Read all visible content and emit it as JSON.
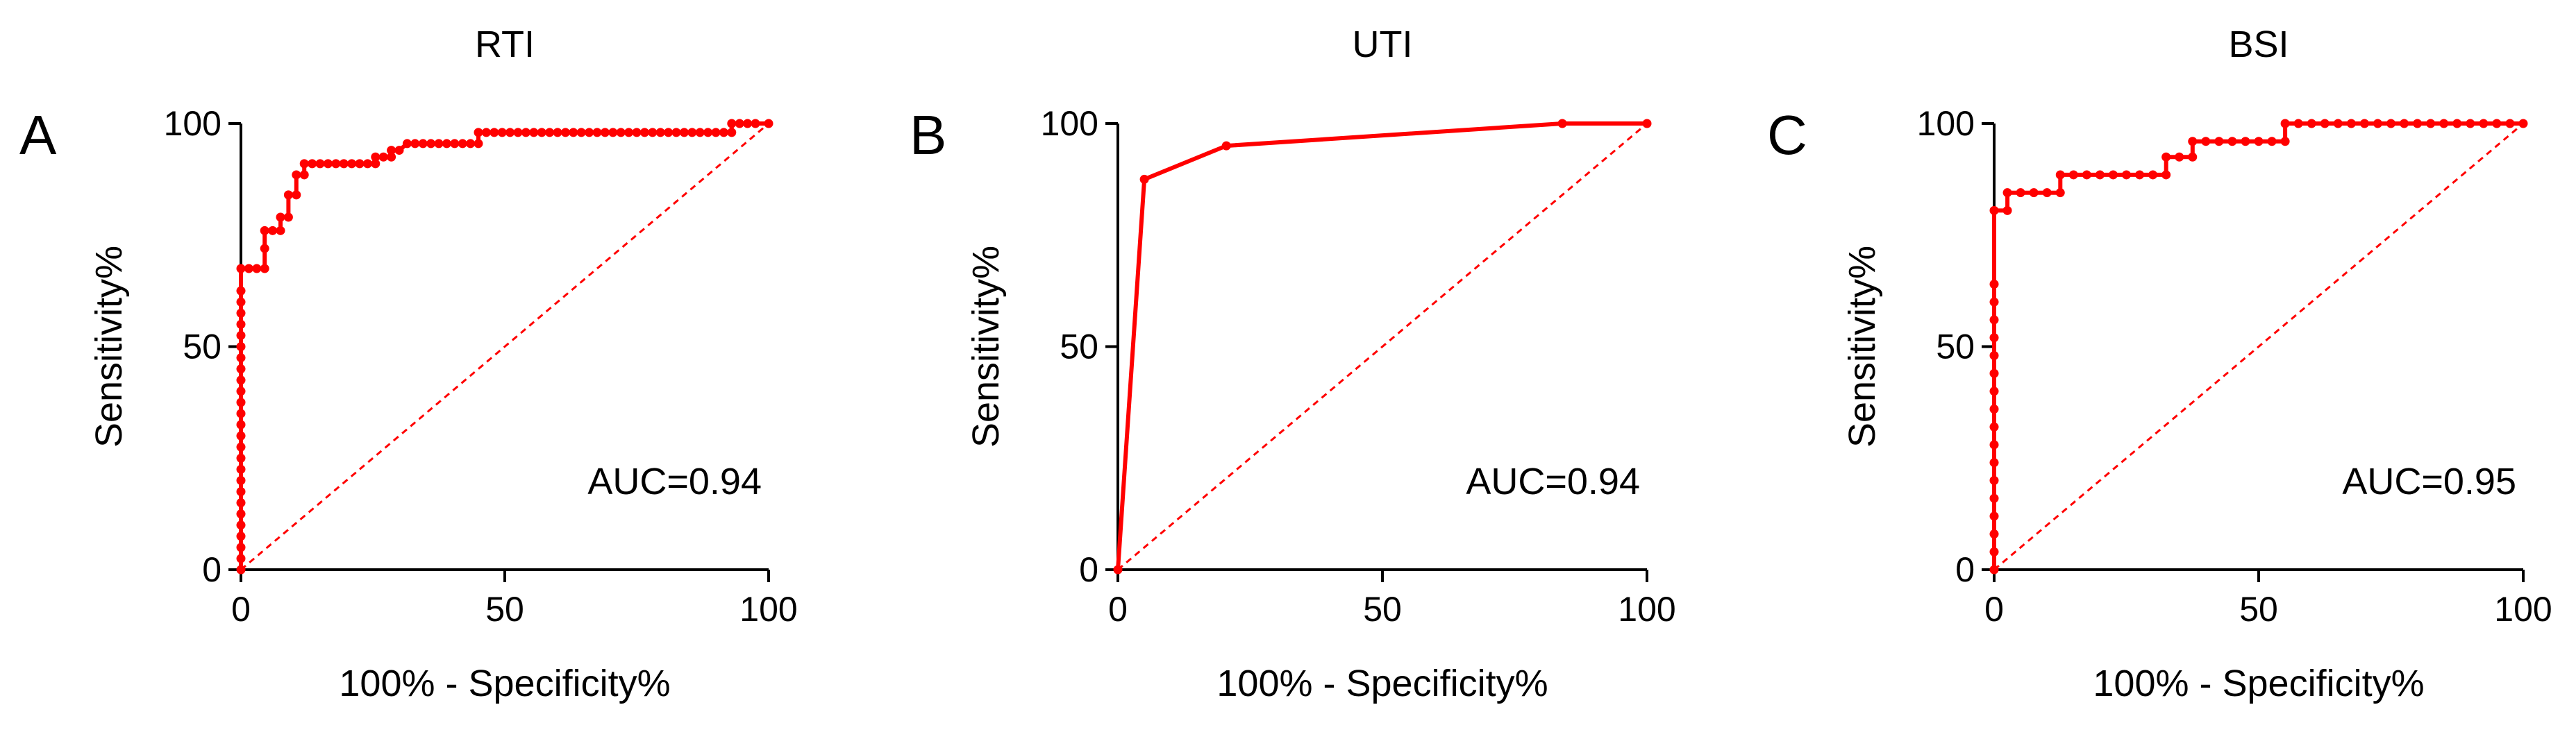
{
  "chart_data": [
    {
      "type": "line",
      "panel_letter": "A",
      "title": "RTI",
      "xlabel": "100% - Specificity%",
      "ylabel": "Sensitivity%",
      "xlim": [
        0,
        100
      ],
      "ylim": [
        0,
        100
      ],
      "x_ticks": [
        0,
        50,
        100
      ],
      "y_ticks": [
        0,
        50,
        100
      ],
      "annotation": "AUC=0.94",
      "reference_line": [
        [
          0,
          0
        ],
        [
          100,
          100
        ]
      ],
      "series": [
        {
          "x": [
            0,
            0,
            0,
            0,
            0,
            0,
            0,
            0,
            0,
            0,
            0,
            0,
            0,
            0,
            0,
            0,
            0,
            0,
            0,
            0,
            0,
            0,
            0,
            0,
            0,
            0,
            0,
            1.5,
            3,
            4.5,
            4.5,
            4.5,
            6,
            7.5,
            7.5,
            9,
            9,
            10.5,
            10.5,
            12,
            12,
            13.5,
            15,
            16.5,
            18,
            19.5,
            21,
            22.5,
            24,
            25.5,
            25.5,
            27,
            28.5,
            28.5,
            30,
            31.5,
            33,
            34.5,
            36,
            37.5,
            39,
            40.5,
            42,
            43.5,
            45,
            45,
            46.5,
            48,
            49.5,
            51,
            52.5,
            54,
            55.5,
            57,
            58.5,
            60,
            61.5,
            63,
            64.5,
            66,
            67.5,
            69,
            70.5,
            72,
            73.5,
            75,
            76.5,
            78,
            79.5,
            81,
            82.5,
            84,
            85.5,
            87,
            88.5,
            90,
            91.5,
            93,
            93,
            94.5,
            96,
            97.5,
            100
          ],
          "y": [
            0,
            2.5,
            5,
            7.5,
            10,
            12.5,
            15,
            17.5,
            20,
            22.5,
            25,
            27.5,
            30,
            32.5,
            35,
            37.5,
            40,
            42.5,
            45,
            47.5,
            50,
            52.5,
            55,
            57.5,
            60,
            62.5,
            67.5,
            67.5,
            67.5,
            67.5,
            72,
            76,
            76,
            76,
            79,
            79,
            84,
            84,
            88.5,
            88.5,
            91,
            91,
            91,
            91,
            91,
            91,
            91,
            91,
            91,
            91,
            92.5,
            92.5,
            92.5,
            94,
            94,
            95.5,
            95.5,
            95.5,
            95.5,
            95.5,
            95.5,
            95.5,
            95.5,
            95.5,
            95.5,
            98,
            98,
            98,
            98,
            98,
            98,
            98,
            98,
            98,
            98,
            98,
            98,
            98,
            98,
            98,
            98,
            98,
            98,
            98,
            98,
            98,
            98,
            98,
            98,
            98,
            98,
            98,
            98,
            98,
            98,
            98,
            98,
            98,
            100,
            100,
            100,
            100,
            100
          ]
        }
      ]
    },
    {
      "type": "line",
      "panel_letter": "B",
      "title": "UTI",
      "xlabel": "100% - Specificity%",
      "ylabel": "Sensitivity%",
      "xlim": [
        0,
        100
      ],
      "ylim": [
        0,
        100
      ],
      "x_ticks": [
        0,
        50,
        100
      ],
      "y_ticks": [
        0,
        50,
        100
      ],
      "annotation": "AUC=0.94",
      "reference_line": [
        [
          0,
          0
        ],
        [
          100,
          100
        ]
      ],
      "series": [
        {
          "x": [
            0,
            5,
            20.5,
            84,
            100
          ],
          "y": [
            0,
            87.5,
            95,
            100,
            100
          ]
        }
      ]
    },
    {
      "type": "line",
      "panel_letter": "C",
      "title": "BSI",
      "xlabel": "100% - Specificity%",
      "ylabel": "Sensitivity%",
      "xlim": [
        0,
        100
      ],
      "ylim": [
        0,
        100
      ],
      "x_ticks": [
        0,
        50,
        100
      ],
      "y_ticks": [
        0,
        50,
        100
      ],
      "annotation": "AUC=0.95",
      "reference_line": [
        [
          0,
          0
        ],
        [
          100,
          100
        ]
      ],
      "series": [
        {
          "x": [
            0,
            0,
            0,
            0,
            0,
            0,
            0,
            0,
            0,
            0,
            0,
            0,
            0,
            0,
            0,
            0,
            0,
            0,
            2.5,
            2.5,
            5,
            7.5,
            10,
            12.5,
            12.5,
            15,
            17.5,
            20,
            22.5,
            25,
            27.5,
            30,
            32.5,
            32.5,
            35,
            37.5,
            37.5,
            40,
            42.5,
            45,
            47.5,
            50,
            52.5,
            55,
            55,
            57.5,
            60,
            62.5,
            65,
            67.5,
            70,
            72.5,
            75,
            77.5,
            80,
            82.5,
            85,
            87.5,
            90,
            92.5,
            95,
            97.5,
            100
          ],
          "y": [
            0,
            4,
            8,
            12,
            16,
            20,
            24,
            28,
            32,
            36,
            40,
            44,
            48,
            52,
            56,
            60,
            64,
            80.5,
            80.5,
            84.5,
            84.5,
            84.5,
            84.5,
            84.5,
            88.5,
            88.5,
            88.5,
            88.5,
            88.5,
            88.5,
            88.5,
            88.5,
            88.5,
            92.5,
            92.5,
            92.5,
            96,
            96,
            96,
            96,
            96,
            96,
            96,
            96,
            100,
            100,
            100,
            100,
            100,
            100,
            100,
            100,
            100,
            100,
            100,
            100,
            100,
            100,
            100,
            100,
            100,
            100,
            100
          ]
        }
      ]
    }
  ],
  "colors": {
    "roc": "#ff0000",
    "reference": "#ff0000",
    "axis": "#000000"
  }
}
